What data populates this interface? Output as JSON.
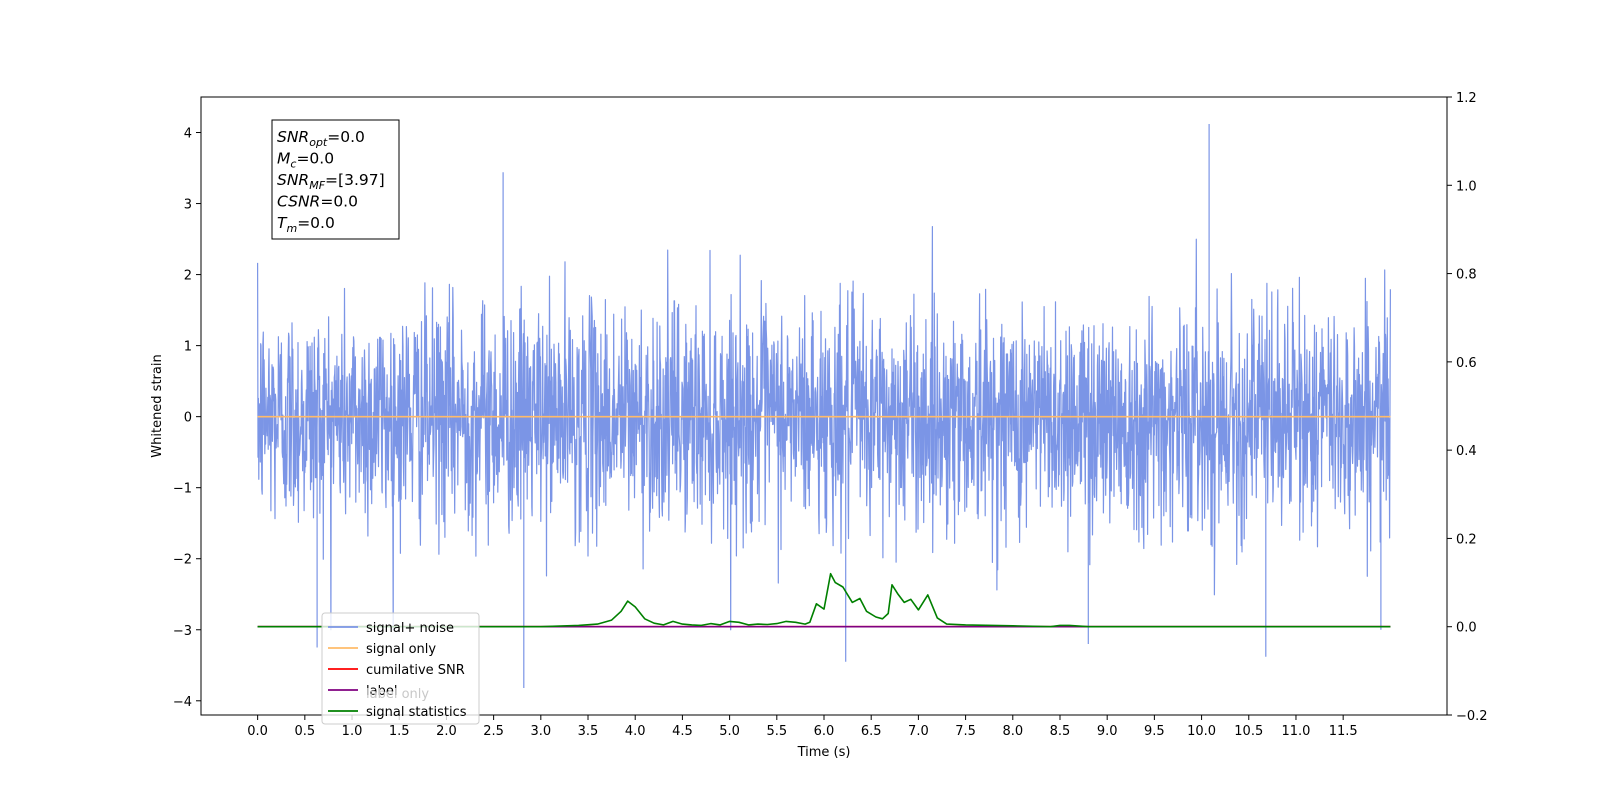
{
  "chart_data": {
    "type": "line",
    "xlabel": "Time (s)",
    "ylabel": "Whitened strain",
    "x_ticks": [
      "0.0",
      "0.5",
      "1.0",
      "1.5",
      "2.0",
      "2.5",
      "3.0",
      "3.5",
      "4.0",
      "4.5",
      "5.0",
      "5.5",
      "6.0",
      "6.5",
      "7.0",
      "7.5",
      "8.0",
      "8.5",
      "9.0",
      "9.5",
      "10.0",
      "10.5",
      "11.0",
      "11.5"
    ],
    "y_left_ticks": [
      "4",
      "3",
      "2",
      "1",
      "0",
      "−1",
      "−2",
      "−3",
      "−4"
    ],
    "y_right_ticks": [
      "1.2",
      "1.0",
      "0.8",
      "0.6",
      "0.4",
      "0.2",
      "0.0",
      "−0.2"
    ],
    "xlim": [
      -0.6,
      12.6
    ],
    "ylim_left": [
      -4.2,
      4.5
    ],
    "ylim_right": [
      -0.2,
      1.2
    ],
    "grid": false,
    "legend_placement": "lower-left",
    "info_box": {
      "lines": [
        {
          "sym": "SNR",
          "sub": "opt",
          "val": "=0.0"
        },
        {
          "sym": "M",
          "sub": "c",
          "val": "=0.0"
        },
        {
          "sym": "SNR",
          "sub": "MF",
          "val": "=[3.97]"
        },
        {
          "sym": "CSNR",
          "sub": "",
          "val": "=0.0"
        },
        {
          "sym": "T",
          "sub": "m",
          "val": "=0.0"
        }
      ]
    },
    "series": [
      {
        "name": "signal+ noise",
        "axis": "left",
        "color": "#7b95e6",
        "x_range": [
          0.0,
          12.0
        ],
        "noise_sigma": 0.78,
        "peaks": [
          [
            0.63,
            -3.25
          ],
          [
            2.6,
            3.44
          ],
          [
            2.82,
            -3.82
          ],
          [
            6.23,
            -3.45
          ],
          [
            8.8,
            -3.2
          ],
          [
            10.08,
            4.12
          ],
          [
            10.68,
            -3.38
          ],
          [
            11.9,
            -3.0
          ]
        ]
      },
      {
        "name": "signal only",
        "axis": "left",
        "color": "#ffbb6a",
        "x": [
          0.0,
          12.0
        ],
        "values": [
          0.0,
          0.0
        ]
      },
      {
        "name": "cumilative SNR",
        "axis": "right",
        "color": "#ff0000",
        "x": [
          0.0,
          12.0
        ],
        "values": [
          0.0,
          0.0
        ]
      },
      {
        "name": "label",
        "axis": "right",
        "color": "#800080",
        "x": [
          0.0,
          12.0
        ],
        "values": [
          0.0,
          0.0
        ]
      },
      {
        "name": "label only",
        "axis": "right",
        "color": "#cccccc",
        "legend_hidden": true,
        "x": [],
        "values": []
      },
      {
        "name": "signal statistics",
        "axis": "right",
        "color": "#008000",
        "x": [
          0.0,
          3.0,
          3.4,
          3.6,
          3.75,
          3.85,
          3.92,
          4.0,
          4.1,
          4.2,
          4.3,
          4.4,
          4.5,
          4.6,
          4.7,
          4.8,
          4.9,
          5.0,
          5.1,
          5.2,
          5.3,
          5.4,
          5.5,
          5.6,
          5.7,
          5.8,
          5.85,
          5.92,
          6.0,
          6.07,
          6.12,
          6.2,
          6.3,
          6.38,
          6.45,
          6.55,
          6.62,
          6.68,
          6.72,
          6.78,
          6.85,
          6.92,
          7.0,
          7.1,
          7.2,
          7.3,
          7.5,
          8.0,
          8.4,
          8.5,
          8.6,
          8.8,
          12.0
        ],
        "values": [
          0.0,
          0.0,
          0.003,
          0.006,
          0.015,
          0.035,
          0.058,
          0.045,
          0.018,
          0.008,
          0.004,
          0.012,
          0.006,
          0.004,
          0.003,
          0.007,
          0.004,
          0.012,
          0.01,
          0.004,
          0.006,
          0.005,
          0.007,
          0.012,
          0.01,
          0.006,
          0.01,
          0.052,
          0.04,
          0.12,
          0.1,
          0.09,
          0.055,
          0.064,
          0.035,
          0.022,
          0.018,
          0.03,
          0.095,
          0.075,
          0.055,
          0.062,
          0.038,
          0.072,
          0.02,
          0.006,
          0.004,
          0.002,
          0.0,
          0.003,
          0.003,
          0.0,
          0.0
        ]
      }
    ]
  }
}
